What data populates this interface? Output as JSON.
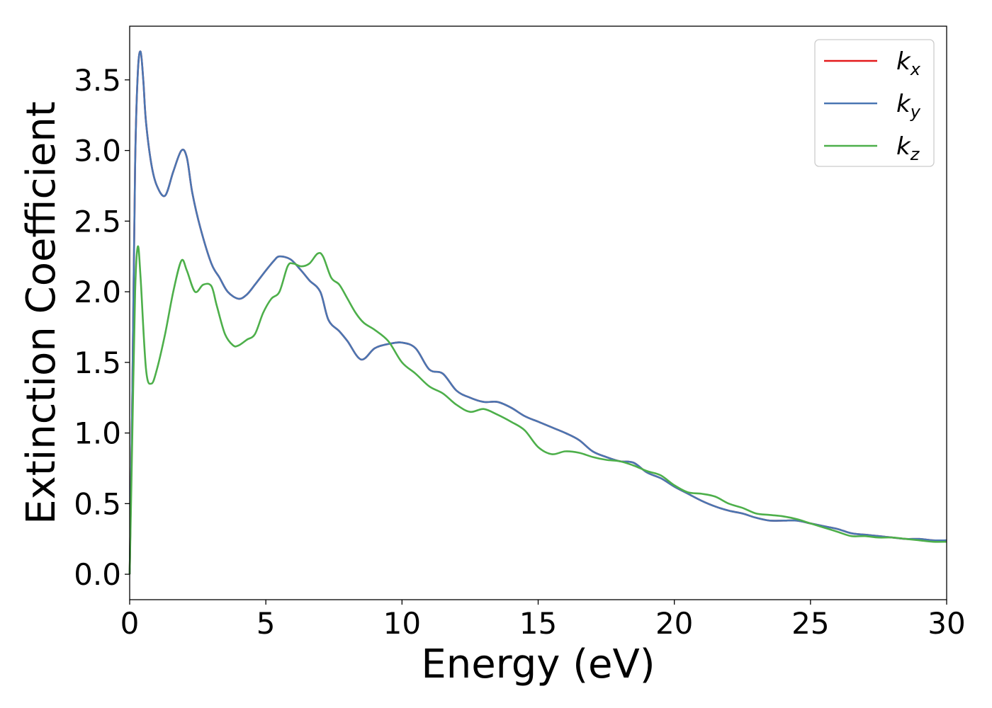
{
  "chart_data": {
    "type": "line",
    "title": "",
    "xlabel": "Energy (eV)",
    "ylabel": "Extinction Coefficient",
    "xlim": [
      0,
      30
    ],
    "ylim": [
      -0.18,
      3.88
    ],
    "xticks": [
      0,
      5,
      10,
      15,
      20,
      25,
      30
    ],
    "yticks": [
      0.0,
      0.5,
      1.0,
      1.5,
      2.0,
      2.5,
      3.0,
      3.5
    ],
    "ytick_labels": [
      "0.0",
      "0.5",
      "1.0",
      "1.5",
      "2.0",
      "2.5",
      "3.0",
      "3.5"
    ],
    "grid": false,
    "legend_position": "top-right",
    "series": [
      {
        "name": "k_x",
        "legend_base": "k",
        "legend_sub": "x",
        "color": "#e41a1c",
        "x": [
          0,
          0.1,
          0.2,
          0.3,
          0.4,
          0.5,
          0.6,
          0.8,
          1.0,
          1.3,
          1.6,
          1.9,
          2.1,
          2.3,
          2.6,
          3.0,
          3.3,
          3.6,
          4.0,
          4.3,
          4.6,
          5.0,
          5.3,
          5.5,
          5.9,
          6.3,
          6.6,
          7.0,
          7.3,
          7.7,
          8.0,
          8.5,
          9.0,
          9.5,
          10.0,
          10.5,
          11.0,
          11.5,
          12.0,
          12.5,
          13.0,
          13.5,
          14.0,
          14.5,
          15.0,
          15.5,
          16.0,
          16.5,
          17.0,
          17.5,
          18.0,
          18.5,
          19.0,
          19.5,
          20.0,
          20.5,
          21.0,
          21.5,
          22.0,
          22.5,
          23.0,
          23.5,
          24.0,
          24.5,
          25.0,
          25.5,
          26.0,
          26.5,
          27.0,
          27.5,
          28.0,
          28.5,
          29.0,
          29.5,
          30.0
        ],
        "y": [
          0.0,
          1.3,
          2.9,
          3.55,
          3.7,
          3.5,
          3.2,
          2.9,
          2.75,
          2.68,
          2.85,
          3.0,
          2.95,
          2.7,
          2.45,
          2.2,
          2.1,
          2.0,
          1.95,
          1.98,
          2.05,
          2.15,
          2.22,
          2.25,
          2.23,
          2.15,
          2.08,
          2.0,
          1.8,
          1.72,
          1.65,
          1.52,
          1.6,
          1.63,
          1.64,
          1.6,
          1.45,
          1.42,
          1.3,
          1.25,
          1.22,
          1.22,
          1.18,
          1.12,
          1.08,
          1.04,
          1.0,
          0.95,
          0.87,
          0.83,
          0.8,
          0.79,
          0.72,
          0.68,
          0.62,
          0.57,
          0.52,
          0.48,
          0.45,
          0.43,
          0.4,
          0.38,
          0.38,
          0.38,
          0.36,
          0.34,
          0.32,
          0.29,
          0.28,
          0.27,
          0.26,
          0.25,
          0.25,
          0.24,
          0.24
        ]
      },
      {
        "name": "k_y",
        "legend_base": "k",
        "legend_sub": "y",
        "color": "#4a76b2",
        "x": [
          0,
          0.1,
          0.2,
          0.3,
          0.4,
          0.5,
          0.6,
          0.8,
          1.0,
          1.3,
          1.6,
          1.9,
          2.1,
          2.3,
          2.6,
          3.0,
          3.3,
          3.6,
          4.0,
          4.3,
          4.6,
          5.0,
          5.3,
          5.5,
          5.9,
          6.3,
          6.6,
          7.0,
          7.3,
          7.7,
          8.0,
          8.5,
          9.0,
          9.5,
          10.0,
          10.5,
          11.0,
          11.5,
          12.0,
          12.5,
          13.0,
          13.5,
          14.0,
          14.5,
          15.0,
          15.5,
          16.0,
          16.5,
          17.0,
          17.5,
          18.0,
          18.5,
          19.0,
          19.5,
          20.0,
          20.5,
          21.0,
          21.5,
          22.0,
          22.5,
          23.0,
          23.5,
          24.0,
          24.5,
          25.0,
          25.5,
          26.0,
          26.5,
          27.0,
          27.5,
          28.0,
          28.5,
          29.0,
          29.5,
          30.0
        ],
        "y": [
          0.0,
          1.3,
          2.9,
          3.55,
          3.7,
          3.5,
          3.2,
          2.9,
          2.75,
          2.68,
          2.85,
          3.0,
          2.95,
          2.7,
          2.45,
          2.2,
          2.1,
          2.0,
          1.95,
          1.98,
          2.05,
          2.15,
          2.22,
          2.25,
          2.23,
          2.15,
          2.08,
          2.0,
          1.8,
          1.72,
          1.65,
          1.52,
          1.6,
          1.63,
          1.64,
          1.6,
          1.45,
          1.42,
          1.3,
          1.25,
          1.22,
          1.22,
          1.18,
          1.12,
          1.08,
          1.04,
          1.0,
          0.95,
          0.87,
          0.83,
          0.8,
          0.79,
          0.72,
          0.68,
          0.62,
          0.57,
          0.52,
          0.48,
          0.45,
          0.43,
          0.4,
          0.38,
          0.38,
          0.38,
          0.36,
          0.34,
          0.32,
          0.29,
          0.28,
          0.27,
          0.26,
          0.25,
          0.25,
          0.24,
          0.24
        ]
      },
      {
        "name": "k_z",
        "legend_base": "k",
        "legend_sub": "z",
        "color": "#4daf4a",
        "x": [
          0,
          0.1,
          0.2,
          0.3,
          0.4,
          0.6,
          0.8,
          1.0,
          1.3,
          1.6,
          1.9,
          2.1,
          2.4,
          2.7,
          3.0,
          3.2,
          3.5,
          3.8,
          4.0,
          4.3,
          4.6,
          4.9,
          5.2,
          5.5,
          5.8,
          6.0,
          6.3,
          6.6,
          6.9,
          7.1,
          7.4,
          7.7,
          8.0,
          8.3,
          8.6,
          9.0,
          9.5,
          10.0,
          10.5,
          11.0,
          11.5,
          12.0,
          12.5,
          13.0,
          13.5,
          14.0,
          14.5,
          15.0,
          15.5,
          16.0,
          16.5,
          17.0,
          17.5,
          18.0,
          18.5,
          19.0,
          19.5,
          20.0,
          20.5,
          21.0,
          21.5,
          22.0,
          22.5,
          23.0,
          23.5,
          24.0,
          24.5,
          25.0,
          25.5,
          26.0,
          26.5,
          27.0,
          27.5,
          28.0,
          28.5,
          29.0,
          29.5,
          30.0
        ],
        "y": [
          0.0,
          1.0,
          2.0,
          2.32,
          2.1,
          1.45,
          1.35,
          1.45,
          1.7,
          2.0,
          2.22,
          2.15,
          2.0,
          2.05,
          2.04,
          1.9,
          1.7,
          1.62,
          1.62,
          1.66,
          1.7,
          1.85,
          1.95,
          2.0,
          2.18,
          2.2,
          2.18,
          2.2,
          2.27,
          2.25,
          2.1,
          2.05,
          1.95,
          1.85,
          1.78,
          1.73,
          1.65,
          1.5,
          1.42,
          1.33,
          1.28,
          1.2,
          1.15,
          1.17,
          1.13,
          1.08,
          1.02,
          0.9,
          0.85,
          0.87,
          0.86,
          0.83,
          0.81,
          0.8,
          0.77,
          0.73,
          0.7,
          0.63,
          0.58,
          0.57,
          0.55,
          0.5,
          0.47,
          0.43,
          0.42,
          0.41,
          0.39,
          0.36,
          0.33,
          0.3,
          0.27,
          0.27,
          0.26,
          0.26,
          0.25,
          0.24,
          0.23,
          0.23
        ]
      }
    ]
  }
}
